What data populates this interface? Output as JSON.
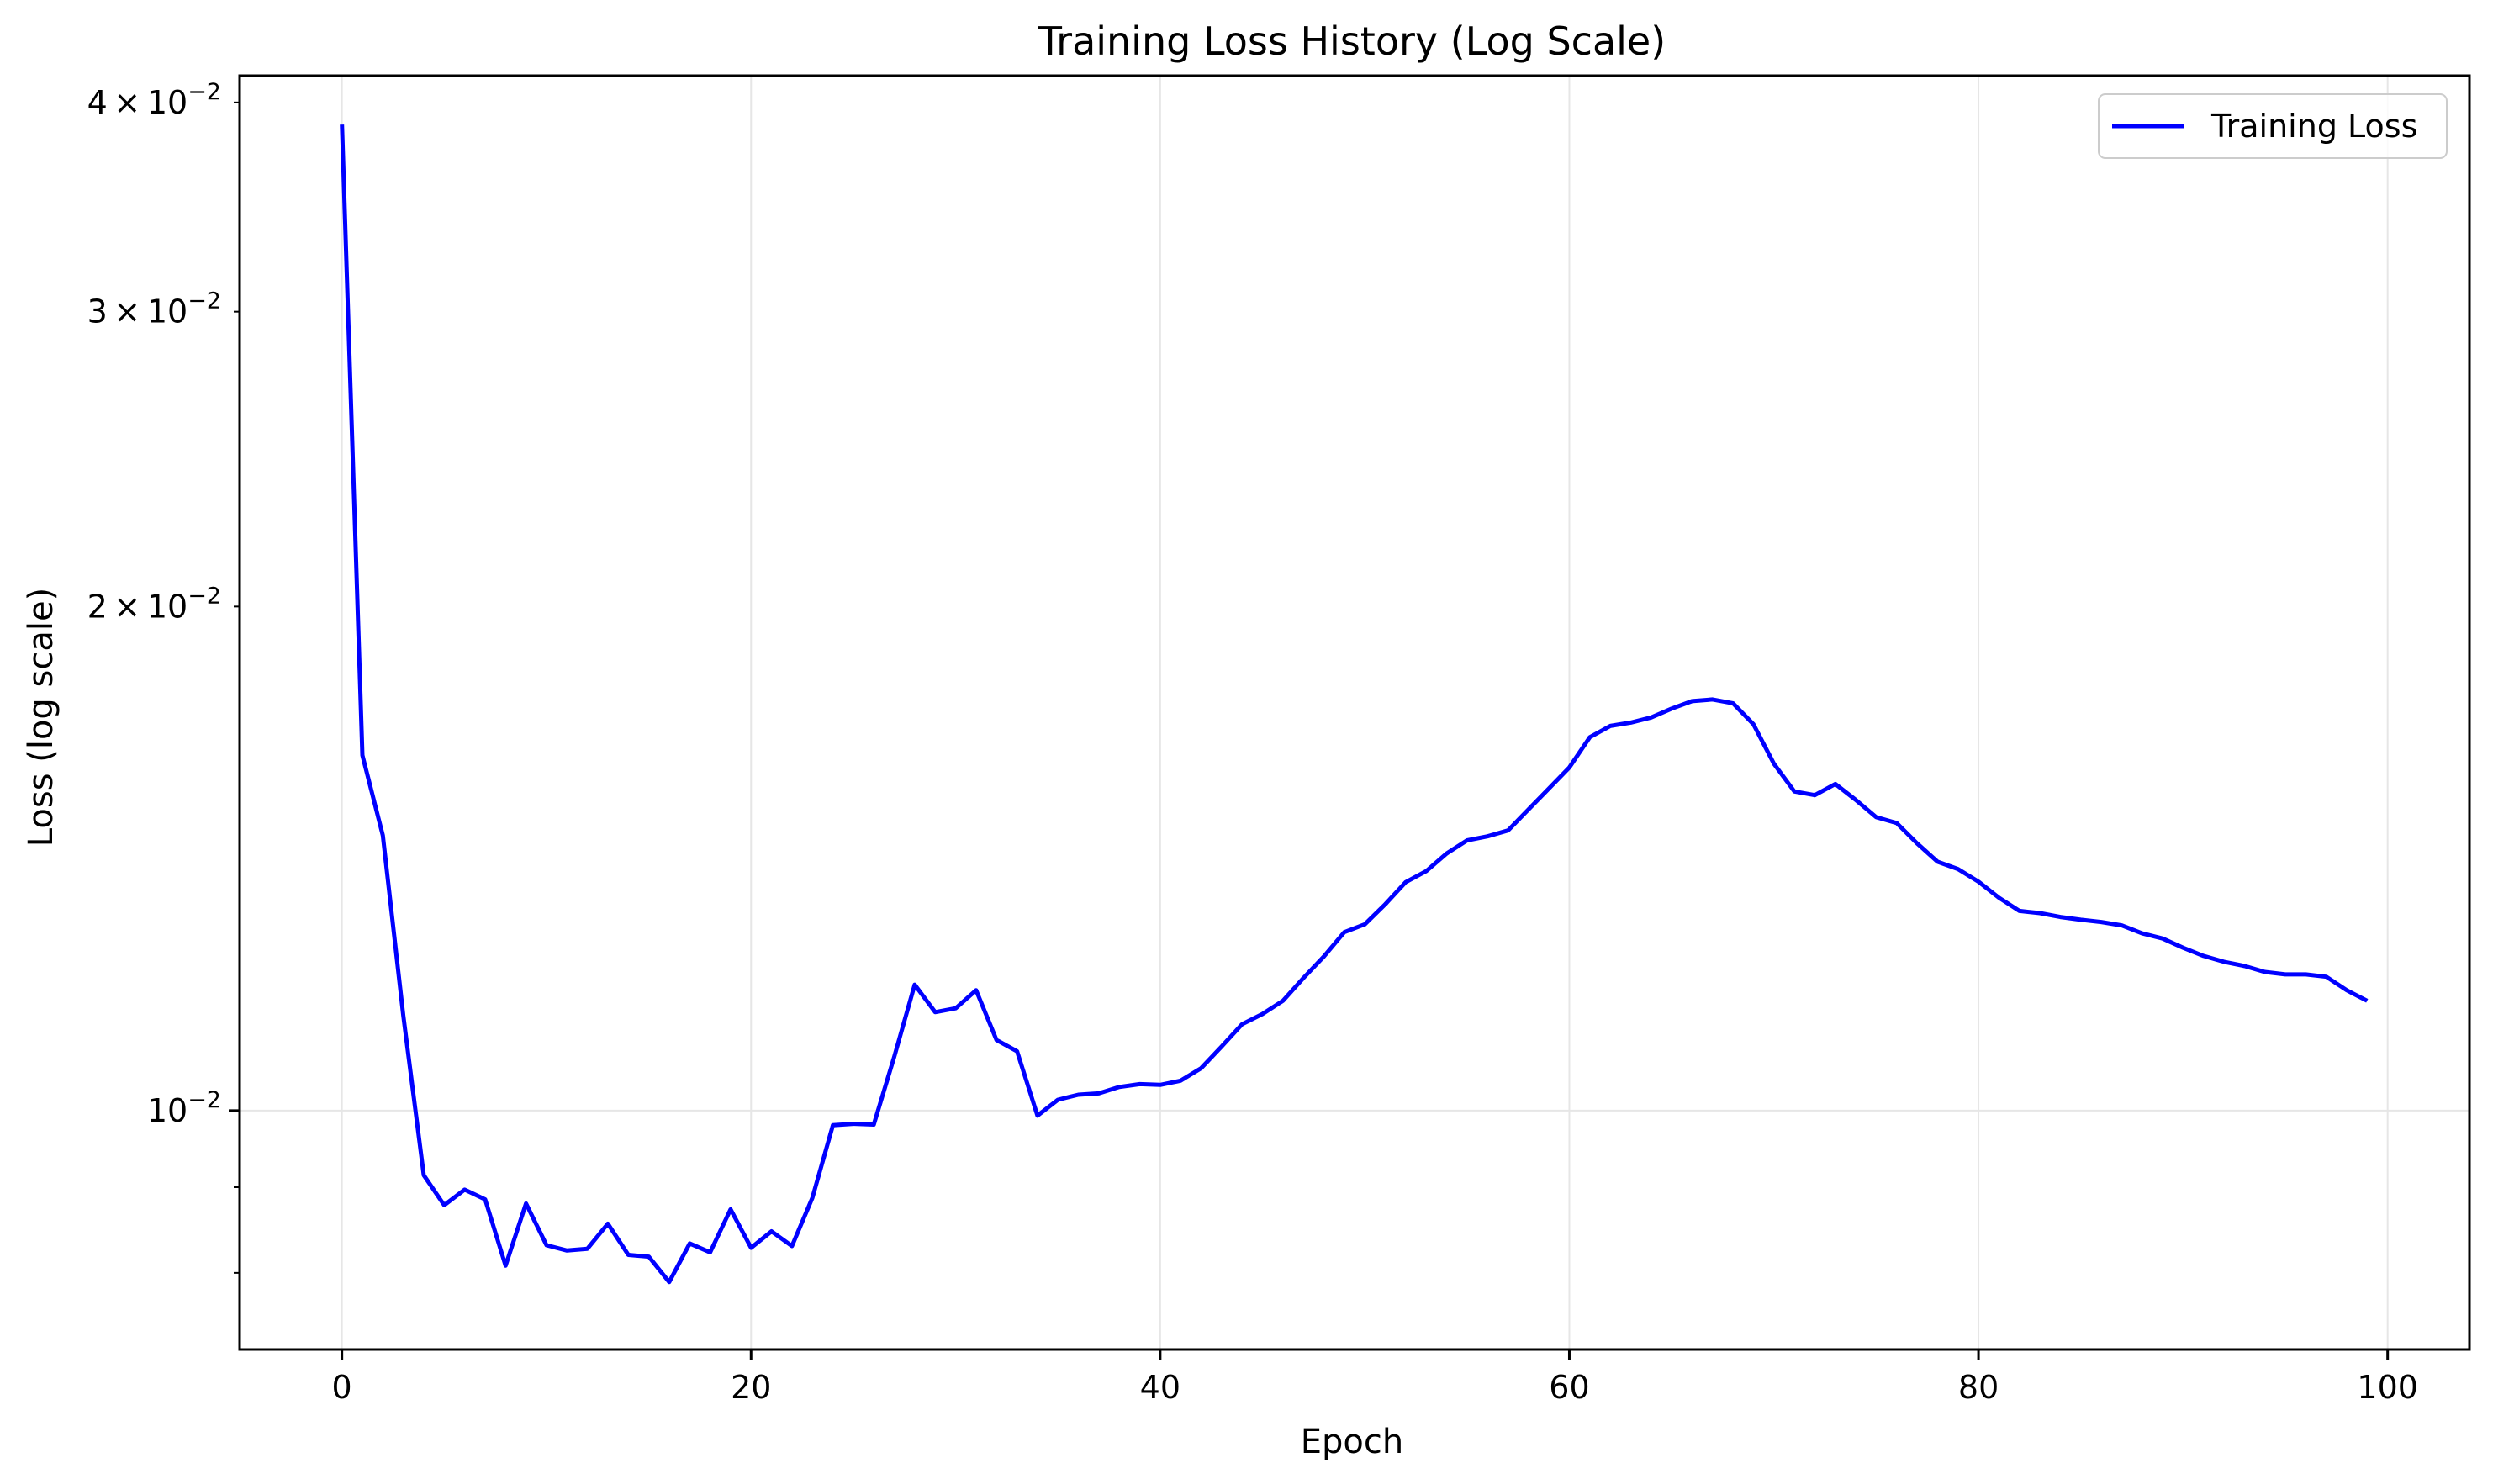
{
  "chart_data": {
    "type": "line",
    "title": "Training Loss History (Log Scale)",
    "xlabel": "Epoch",
    "ylabel": "Loss (log scale)",
    "y_scale": "log",
    "xlim": [
      -5,
      104
    ],
    "ylim": [
      0.0072,
      0.0415
    ],
    "grid": true,
    "legend_position": "top-right",
    "x_ticks": [
      0,
      20,
      40,
      60,
      80,
      100
    ],
    "x_tick_labels": [
      "0",
      "20",
      "40",
      "60",
      "80",
      "100"
    ],
    "y_major_ticks": [
      0.01
    ],
    "y_major_tick_labels": [
      "10^-2"
    ],
    "y_minor_ticks": [
      0.008,
      0.009,
      0.02,
      0.03,
      0.04
    ],
    "y_minor_tick_labels": [
      {
        "value": 0.04,
        "label": "4 × 10^-2"
      },
      {
        "value": 0.03,
        "label": "3 × 10^-2"
      },
      {
        "value": 0.02,
        "label": "2 × 10^-2"
      }
    ],
    "colors": {
      "series": "#0000ff",
      "grid": "#e6e6e6",
      "axes": "#000000"
    },
    "series": [
      {
        "name": "Training Loss",
        "color": "#0000ff",
        "x": [
          0,
          1,
          2,
          3,
          4,
          5,
          6,
          7,
          8,
          9,
          10,
          11,
          12,
          13,
          14,
          15,
          16,
          17,
          18,
          19,
          20,
          21,
          22,
          23,
          24,
          25,
          26,
          27,
          28,
          29,
          30,
          31,
          32,
          33,
          34,
          35,
          36,
          37,
          38,
          39,
          40,
          41,
          42,
          43,
          44,
          45,
          46,
          47,
          48,
          49,
          50,
          51,
          52,
          53,
          54,
          55,
          56,
          57,
          58,
          59,
          60,
          61,
          62,
          63,
          64,
          65,
          66,
          67,
          68,
          69,
          70,
          71,
          72,
          73,
          74,
          75,
          76,
          77,
          78,
          79,
          80,
          81,
          82,
          83,
          84,
          85,
          86,
          87,
          88,
          89,
          90,
          91,
          92,
          93,
          94,
          95,
          96,
          97,
          98,
          99
        ],
        "values": [
          0.0388,
          0.0163,
          0.0146,
          0.0114,
          0.00915,
          0.00878,
          0.00897,
          0.00885,
          0.00808,
          0.0088,
          0.00831,
          0.00825,
          0.00827,
          0.00856,
          0.0082,
          0.00818,
          0.0079,
          0.00833,
          0.00823,
          0.00873,
          0.00828,
          0.00847,
          0.0083,
          0.00887,
          0.0098,
          0.00982,
          0.00981,
          0.01077,
          0.01189,
          0.01145,
          0.01151,
          0.0118,
          0.01102,
          0.01085,
          0.00993,
          0.01015,
          0.01022,
          0.01024,
          0.01033,
          0.01037,
          0.01036,
          0.01042,
          0.0106,
          0.01092,
          0.01126,
          0.01142,
          0.01163,
          0.012,
          0.01236,
          0.01278,
          0.01292,
          0.01328,
          0.01369,
          0.0139,
          0.01424,
          0.0145,
          0.01458,
          0.0147,
          0.01513,
          0.01557,
          0.01603,
          0.01671,
          0.01697,
          0.01705,
          0.01717,
          0.01738,
          0.01756,
          0.0176,
          0.01751,
          0.01701,
          0.01611,
          0.01551,
          0.01543,
          0.01567,
          0.01533,
          0.01497,
          0.01485,
          0.01444,
          0.01408,
          0.01394,
          0.0137,
          0.0134,
          0.01316,
          0.01312,
          0.01305,
          0.013,
          0.01296,
          0.0129,
          0.01276,
          0.01267,
          0.01251,
          0.01237,
          0.01227,
          0.0122,
          0.0121,
          0.01206,
          0.01206,
          0.01202,
          0.0118,
          0.01163
        ]
      }
    ]
  }
}
